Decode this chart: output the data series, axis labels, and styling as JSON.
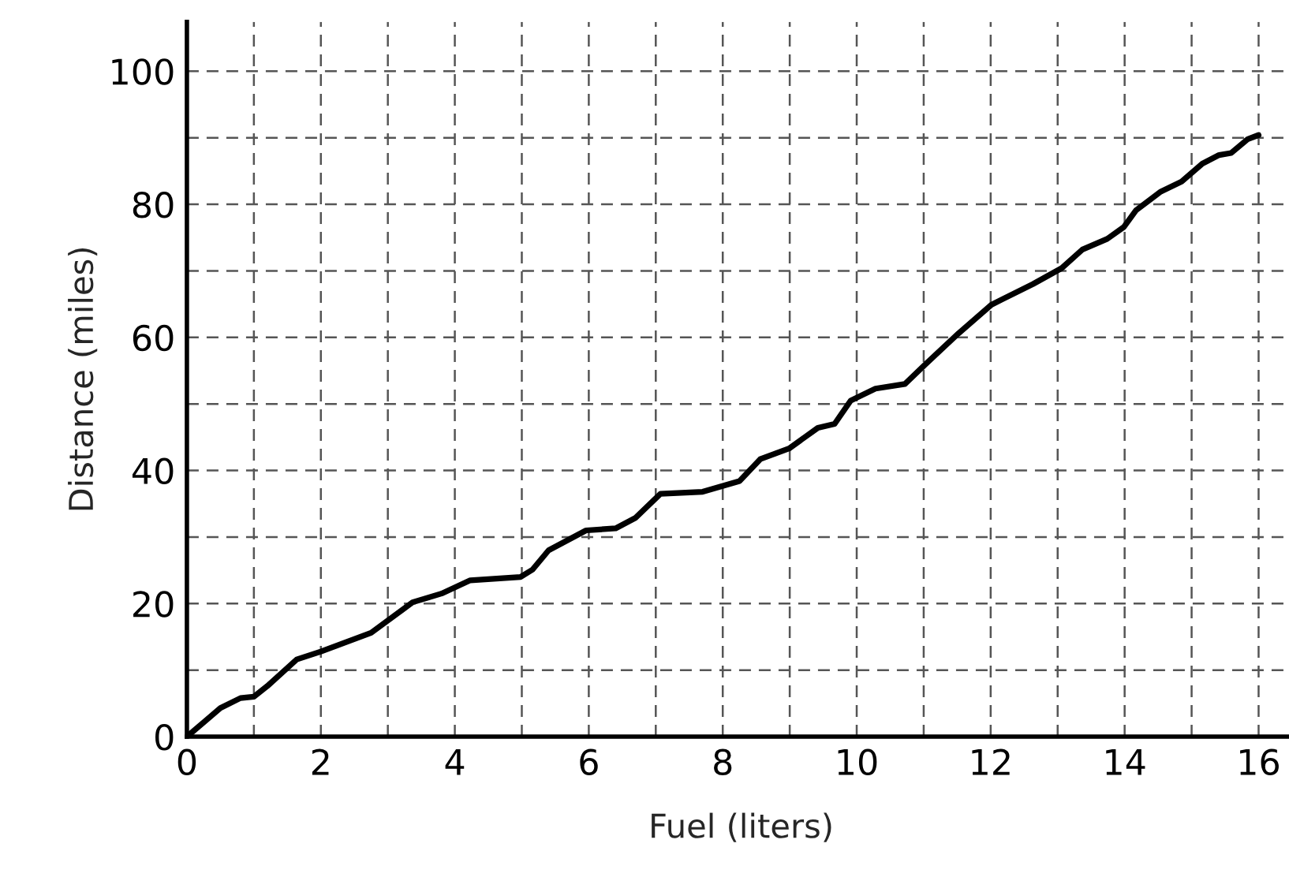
{
  "chart_data": {
    "type": "line",
    "xlabel": "Fuel (liters)",
    "ylabel": "Distance (miles)",
    "x": [
      0,
      0.5,
      0.8,
      1.0,
      1.2,
      1.64,
      2.0,
      2.75,
      3.37,
      3.8,
      4.23,
      4.98,
      5.16,
      5.4,
      5.96,
      6.4,
      6.7,
      7.07,
      7.7,
      8.25,
      8.56,
      8.99,
      9.42,
      9.67,
      9.91,
      10.28,
      10.72,
      11.02,
      11.52,
      12.01,
      12.63,
      13.06,
      13.37,
      13.74,
      13.99,
      14.17,
      14.54,
      14.85,
      15.16,
      15.41,
      15.59,
      15.84,
      16.0
    ],
    "series": [
      {
        "color": "#000000",
        "values": [
          0,
          4.3,
          5.8,
          6.0,
          7.6,
          11.6,
          12.8,
          15.6,
          20.2,
          21.5,
          23.5,
          24.0,
          25.1,
          28.0,
          31.0,
          31.3,
          32.9,
          36.5,
          36.8,
          38.4,
          41.7,
          43.3,
          46.4,
          47.0,
          50.5,
          52.3,
          53.0,
          55.9,
          60.6,
          64.9,
          68.0,
          70.4,
          73.2,
          74.8,
          76.6,
          79.1,
          81.9,
          83.4,
          86.1,
          87.4,
          87.7,
          89.8,
          90.4
        ]
      }
    ],
    "xlim": [
      0,
      16.55
    ],
    "ylim": [
      0,
      107.4
    ],
    "xticks": [
      0,
      {
        "value": 1,
        "label": null
      },
      2,
      {
        "value": 3,
        "label": null
      },
      4,
      {
        "value": 5,
        "label": null
      },
      6,
      {
        "value": 7,
        "label": null
      },
      8,
      {
        "value": 9,
        "label": null
      },
      10,
      {
        "value": 11,
        "label": null
      },
      12,
      {
        "value": 13,
        "label": null
      },
      14,
      {
        "value": 15,
        "label": null
      },
      16
    ],
    "yticks": [
      0,
      {
        "value": 10,
        "label": null
      },
      20,
      {
        "value": 30,
        "label": null
      },
      40,
      {
        "value": 50,
        "label": null
      },
      60,
      {
        "value": 70,
        "label": null
      },
      80,
      {
        "value": 90,
        "label": null
      },
      100
    ],
    "grid": true,
    "marker": "none",
    "line_style": "solid",
    "legend": false
  }
}
